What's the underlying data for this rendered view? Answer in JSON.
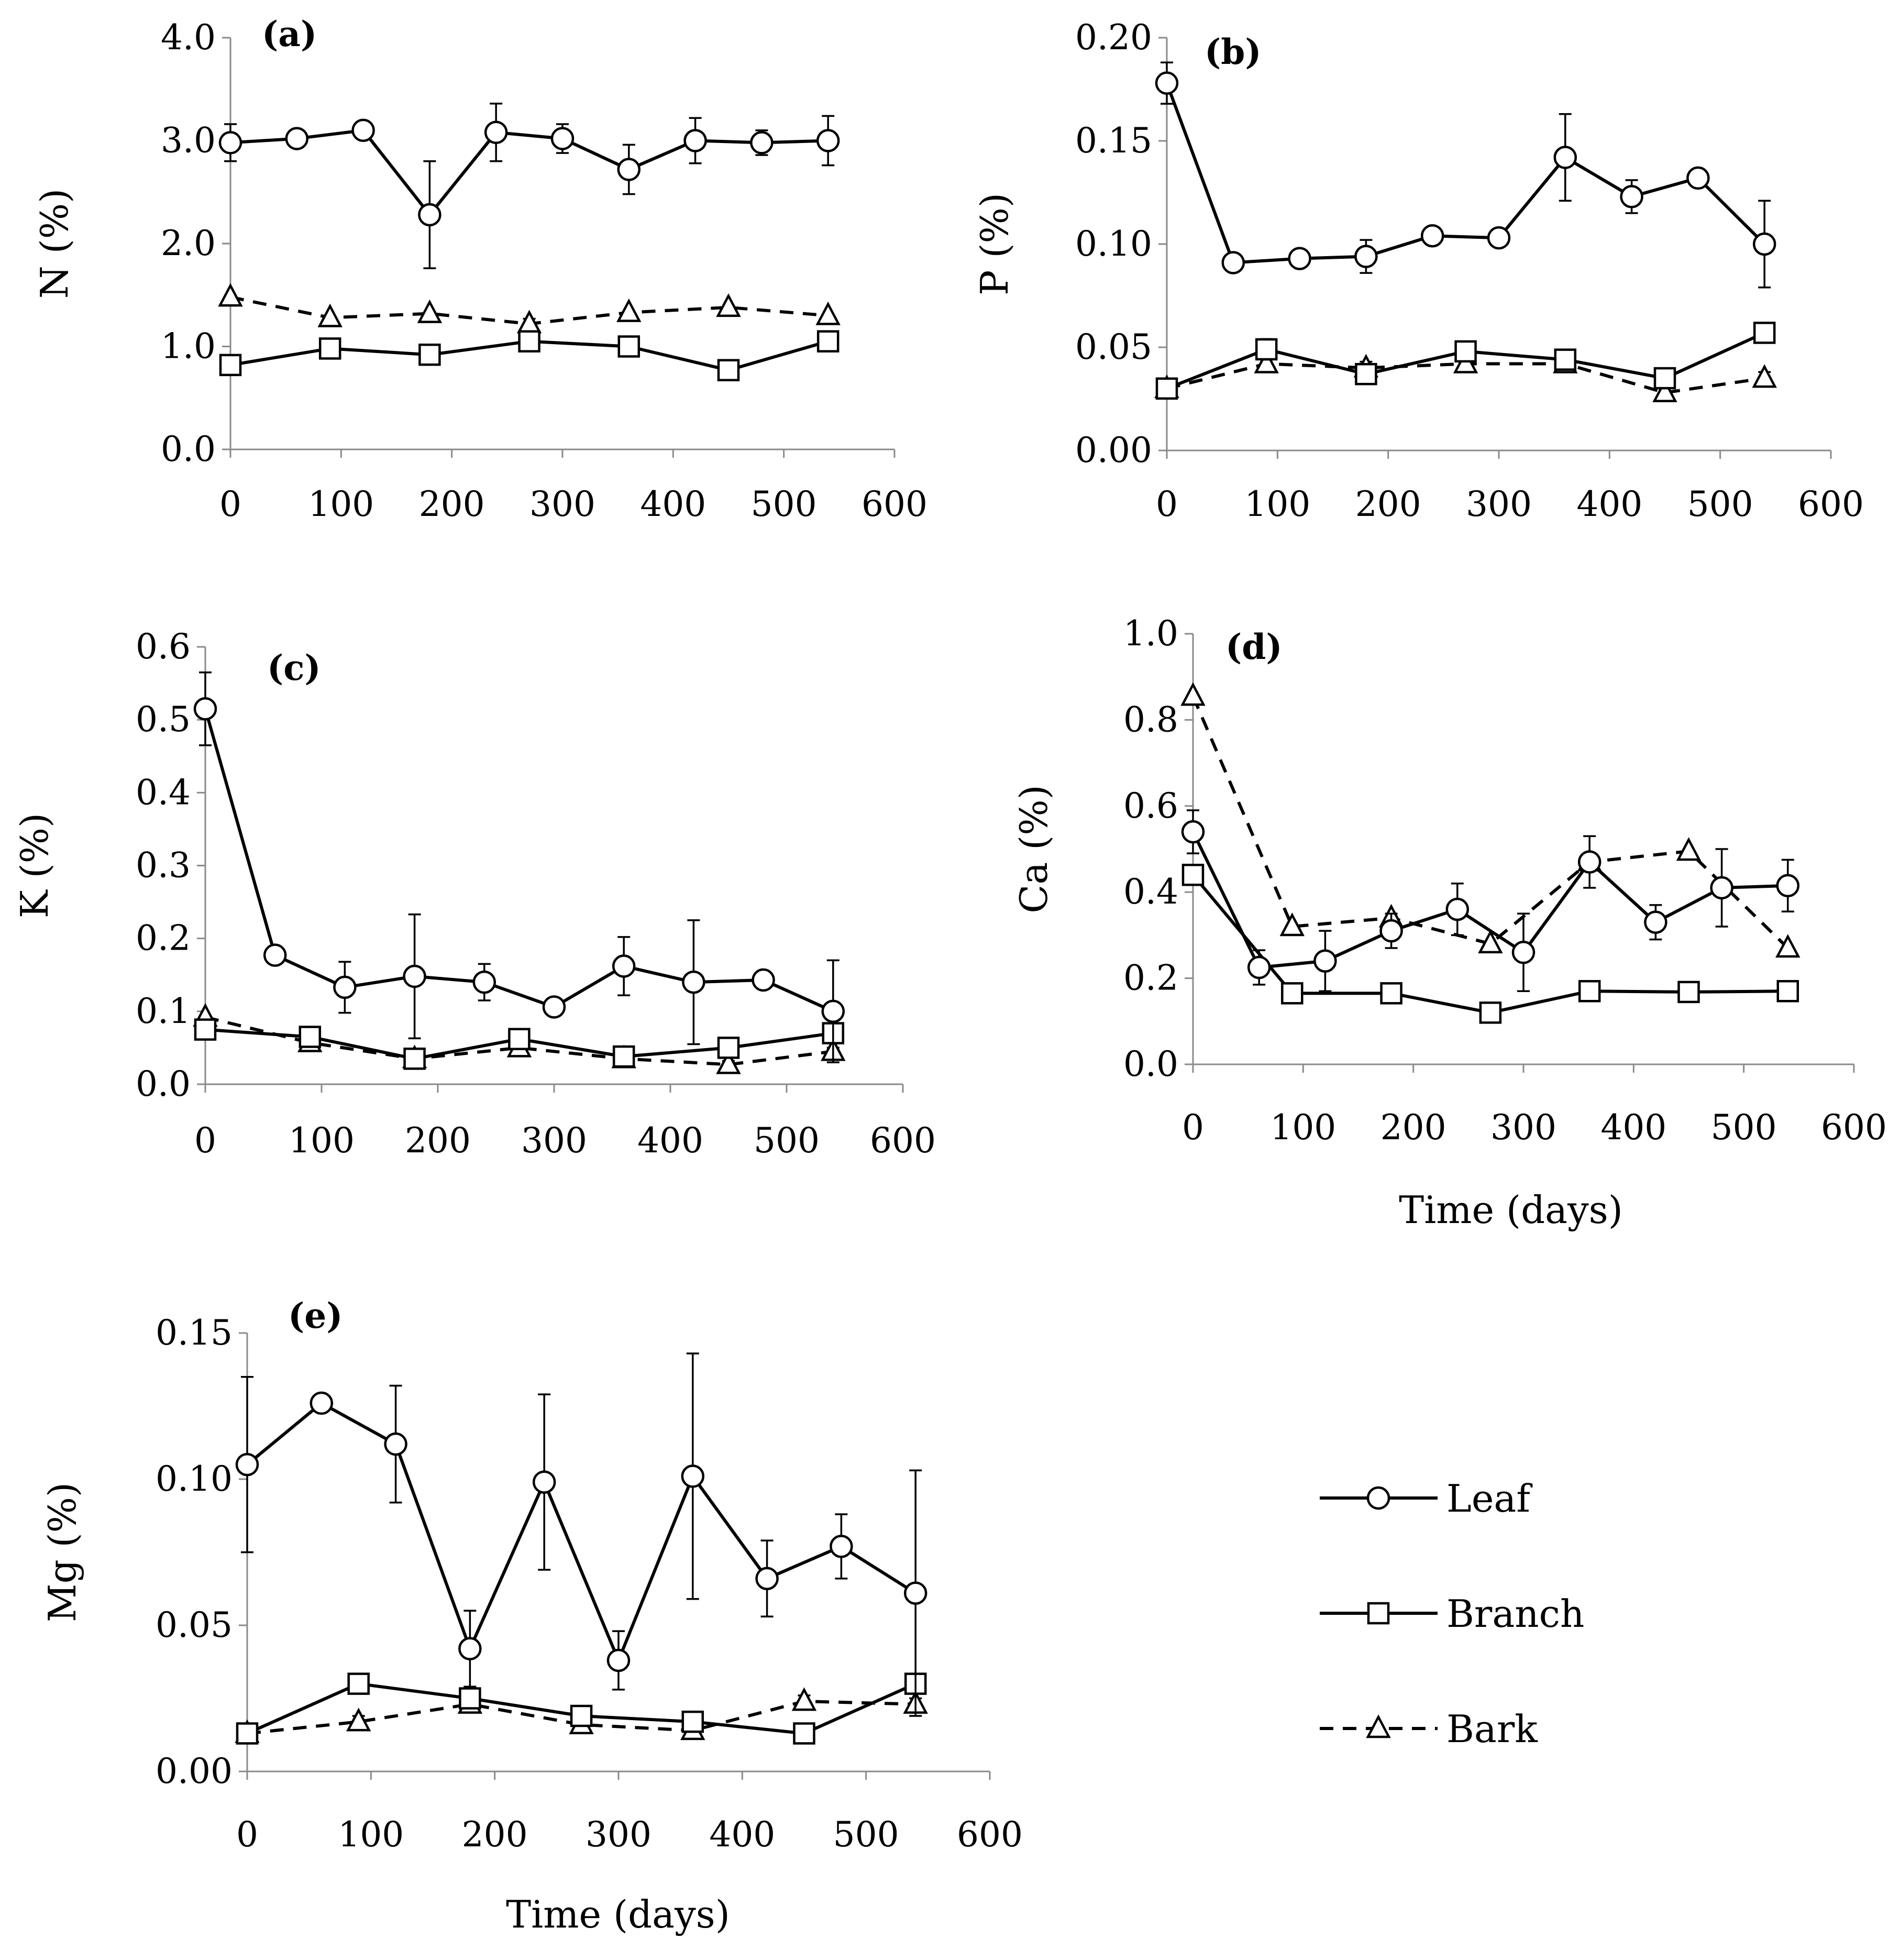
{
  "figure": {
    "legend": [
      {
        "name": "Leaf",
        "marker": "circle",
        "dash": "solid"
      },
      {
        "name": "Branch",
        "marker": "square",
        "dash": "solid"
      },
      {
        "name": "Bark",
        "marker": "triangle",
        "dash": "dashed"
      }
    ]
  },
  "chart_data": [
    {
      "type": "line",
      "panel": "(a)",
      "ylabel": "N (%)",
      "xlabel": "",
      "xlim": [
        0,
        600
      ],
      "ylim": [
        0,
        4
      ],
      "xticks": [
        "0",
        "100",
        "200",
        "300",
        "400",
        "500",
        "600"
      ],
      "yticks": [
        "0.0",
        "1.0",
        "2.0",
        "3.0",
        "4.0"
      ],
      "series": [
        {
          "name": "Leaf",
          "x": [
            0,
            60,
            120,
            180,
            240,
            300,
            360,
            420,
            480,
            540
          ],
          "y": [
            2.98,
            3.02,
            3.1,
            2.28,
            3.08,
            3.02,
            2.72,
            3.0,
            2.98,
            3.0
          ],
          "err": [
            0.18,
            0.08,
            0.08,
            0.52,
            0.28,
            0.14,
            0.24,
            0.22,
            0.12,
            0.24
          ]
        },
        {
          "name": "Branch",
          "x": [
            0,
            90,
            180,
            270,
            360,
            450,
            540
          ],
          "y": [
            0.82,
            0.98,
            0.92,
            1.05,
            1.0,
            0.77,
            1.05
          ],
          "err": [
            0,
            0.05,
            0.05,
            0.05,
            0.08,
            0.05,
            0.05
          ]
        },
        {
          "name": "Bark",
          "x": [
            0,
            90,
            180,
            270,
            360,
            450,
            540
          ],
          "y": [
            1.48,
            1.28,
            1.32,
            1.22,
            1.33,
            1.38,
            1.3
          ],
          "err": [
            0,
            0,
            0,
            0.05,
            0,
            0,
            0
          ]
        }
      ]
    },
    {
      "type": "line",
      "panel": "(b)",
      "ylabel": "P (%)",
      "xlabel": "",
      "xlim": [
        0,
        600
      ],
      "ylim": [
        0,
        0.2
      ],
      "xticks": [
        "0",
        "100",
        "200",
        "300",
        "400",
        "500",
        "600"
      ],
      "yticks": [
        "0.00",
        "0.05",
        "0.10",
        "0.15",
        "0.20"
      ],
      "series": [
        {
          "name": "Leaf",
          "x": [
            0,
            60,
            120,
            180,
            240,
            300,
            360,
            420,
            480,
            540
          ],
          "y": [
            0.178,
            0.091,
            0.093,
            0.094,
            0.104,
            0.103,
            0.142,
            0.123,
            0.132,
            0.1
          ],
          "err": [
            0.01,
            0.003,
            0.004,
            0.008,
            0.003,
            0.003,
            0.021,
            0.008,
            0.004,
            0.021
          ]
        },
        {
          "name": "Branch",
          "x": [
            0,
            90,
            180,
            270,
            360,
            450,
            540
          ],
          "y": [
            0.03,
            0.049,
            0.037,
            0.048,
            0.044,
            0.035,
            0.057
          ],
          "err": [
            0,
            0.005,
            0.003,
            0.003,
            0.003,
            0.003,
            0.004
          ]
        },
        {
          "name": "Bark",
          "x": [
            0,
            90,
            180,
            270,
            360,
            450,
            540
          ],
          "y": [
            0.03,
            0.042,
            0.04,
            0.042,
            0.042,
            0.028,
            0.035
          ],
          "err": [
            0,
            0.003,
            0.003,
            0.003,
            0.003,
            0.003,
            0.003
          ]
        }
      ]
    },
    {
      "type": "line",
      "panel": "(c)",
      "ylabel": "K (%)",
      "xlabel": "",
      "xlim": [
        0,
        600
      ],
      "ylim": [
        0,
        0.6
      ],
      "xticks": [
        "0",
        "100",
        "200",
        "300",
        "400",
        "500",
        "600"
      ],
      "yticks": [
        "0.0",
        "0.1",
        "0.2",
        "0.3",
        "0.4",
        "0.5",
        "0.6"
      ],
      "series": [
        {
          "name": "Leaf",
          "x": [
            0,
            60,
            120,
            180,
            240,
            300,
            360,
            420,
            480,
            540
          ],
          "y": [
            0.515,
            0.177,
            0.133,
            0.148,
            0.14,
            0.106,
            0.162,
            0.14,
            0.143,
            0.1
          ],
          "err": [
            0.05,
            0.005,
            0.035,
            0.085,
            0.025,
            0.008,
            0.04,
            0.085,
            0.01,
            0.07
          ]
        },
        {
          "name": "Branch",
          "x": [
            0,
            90,
            180,
            270,
            360,
            450,
            540
          ],
          "y": [
            0.075,
            0.065,
            0.035,
            0.062,
            0.038,
            0.05,
            0.07
          ],
          "err": [
            0,
            0.005,
            0.005,
            0.005,
            0.005,
            0.005,
            0.005
          ]
        },
        {
          "name": "Bark",
          "x": [
            0,
            90,
            180,
            270,
            360,
            450,
            540
          ],
          "y": [
            0.092,
            0.057,
            0.035,
            0.05,
            0.035,
            0.027,
            0.045
          ],
          "err": [
            0,
            0.005,
            0.005,
            0.005,
            0.005,
            0.005,
            0.005
          ]
        }
      ]
    },
    {
      "type": "line",
      "panel": "(d)",
      "ylabel": "Ca (%)",
      "xlabel": "Time (days)",
      "xlim": [
        0,
        600
      ],
      "ylim": [
        0,
        1
      ],
      "xticks": [
        "0",
        "100",
        "200",
        "300",
        "400",
        "500",
        "600"
      ],
      "yticks": [
        "0.0",
        "0.2",
        "0.4",
        "0.6",
        "0.8",
        "1.0"
      ],
      "series": [
        {
          "name": "Leaf",
          "x": [
            0,
            60,
            120,
            180,
            240,
            300,
            360,
            420,
            480,
            540
          ],
          "y": [
            0.54,
            0.225,
            0.24,
            0.31,
            0.36,
            0.26,
            0.47,
            0.33,
            0.41,
            0.415
          ],
          "err": [
            0.05,
            0.04,
            0.07,
            0.04,
            0.06,
            0.09,
            0.06,
            0.04,
            0.09,
            0.06
          ]
        },
        {
          "name": "Branch",
          "x": [
            0,
            90,
            180,
            270,
            360,
            450,
            540
          ],
          "y": [
            0.44,
            0.165,
            0.165,
            0.12,
            0.17,
            0.168,
            0.17
          ],
          "err": [
            0,
            0.01,
            0.01,
            0.01,
            0.01,
            0.01,
            0.01
          ]
        },
        {
          "name": "Bark",
          "x": [
            0,
            90,
            180,
            270,
            360,
            450,
            540
          ],
          "y": [
            0.855,
            0.32,
            0.34,
            0.28,
            0.47,
            0.495,
            0.27
          ],
          "err": [
            0,
            0,
            0,
            0,
            0,
            0,
            0
          ]
        }
      ]
    },
    {
      "type": "line",
      "panel": "(e)",
      "ylabel": "Mg (%)",
      "xlabel": "Time (days)",
      "xlim": [
        0,
        600
      ],
      "ylim": [
        0,
        0.15
      ],
      "xticks": [
        "0",
        "100",
        "200",
        "300",
        "400",
        "500",
        "600"
      ],
      "yticks": [
        "0.00",
        "0.05",
        "0.10",
        "0.15"
      ],
      "series": [
        {
          "name": "Leaf",
          "x": [
            0,
            60,
            120,
            180,
            240,
            300,
            360,
            420,
            480,
            540
          ],
          "y": [
            0.105,
            0.126,
            0.112,
            0.042,
            0.099,
            0.038,
            0.101,
            0.066,
            0.077,
            0.061
          ],
          "err": [
            0.03,
            0.002,
            0.02,
            0.013,
            0.03,
            0.01,
            0.042,
            0.013,
            0.011,
            0.042
          ]
        },
        {
          "name": "Branch",
          "x": [
            0,
            90,
            180,
            270,
            360,
            450,
            540
          ],
          "y": [
            0.013,
            0.03,
            0.025,
            0.019,
            0.017,
            0.013,
            0.03
          ],
          "err": [
            0,
            0.002,
            0.002,
            0.002,
            0.002,
            0.002,
            0.002
          ]
        },
        {
          "name": "Bark",
          "x": [
            0,
            90,
            180,
            270,
            360,
            450,
            540
          ],
          "y": [
            0.013,
            0.017,
            0.023,
            0.016,
            0.014,
            0.024,
            0.023
          ],
          "err": [
            0,
            0.002,
            0.002,
            0.002,
            0.002,
            0.002,
            0.002
          ]
        }
      ]
    }
  ]
}
